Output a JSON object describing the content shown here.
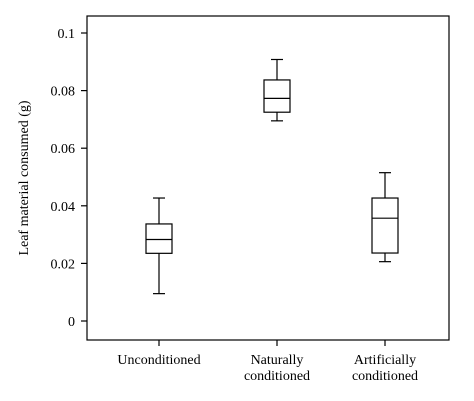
{
  "chart_data": {
    "type": "boxplot",
    "title": "",
    "xlabel": "",
    "ylabel": "Leaf material consumed (g)",
    "ylim": [
      0,
      0.1
    ],
    "yticks": [
      0,
      0.02,
      0.04,
      0.06,
      0.08,
      0.1
    ],
    "ytick_labels": [
      "0",
      "0.02",
      "0.04",
      "0.06",
      "0.08",
      "0.1"
    ],
    "grid": false,
    "legend": "none",
    "categories": [
      [
        "Unconditioned"
      ],
      [
        "Naturally",
        "conditioned"
      ],
      [
        "Artificially",
        "conditioned"
      ]
    ],
    "boxes": [
      {
        "min": 0.0095,
        "q1": 0.0235,
        "median": 0.0283,
        "q3": 0.0337,
        "max": 0.0427
      },
      {
        "min": 0.0695,
        "q1": 0.0725,
        "median": 0.0773,
        "q3": 0.0837,
        "max": 0.0908
      },
      {
        "min": 0.0206,
        "q1": 0.0236,
        "median": 0.0357,
        "q3": 0.0427,
        "max": 0.0515
      }
    ]
  }
}
